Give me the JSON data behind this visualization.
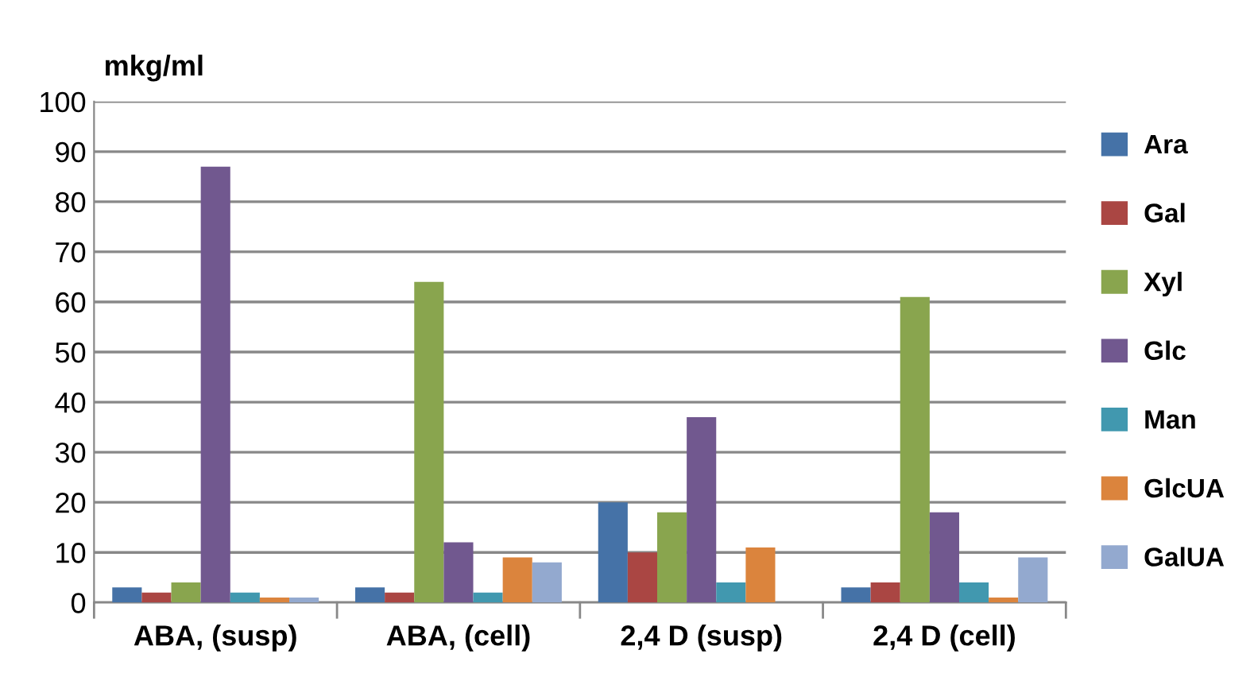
{
  "chart_data": {
    "type": "bar",
    "ylabel": "mkg/ml",
    "categories": [
      "ABA, (susp)",
      "ABA, (cell)",
      "2,4 D (susp)",
      "2,4 D (cell)"
    ],
    "series": [
      {
        "name": "Ara",
        "color": "#4572a7",
        "values": [
          3,
          3,
          20,
          3
        ]
      },
      {
        "name": "Gal",
        "color": "#aa4643",
        "values": [
          2,
          2,
          10,
          4
        ]
      },
      {
        "name": "Xyl",
        "color": "#89a54e",
        "values": [
          4,
          64,
          18,
          61
        ]
      },
      {
        "name": "Glc",
        "color": "#71588f",
        "values": [
          87,
          12,
          37,
          18
        ]
      },
      {
        "name": "Man",
        "color": "#4198af",
        "values": [
          2,
          2,
          4,
          4
        ]
      },
      {
        "name": "GlcUA",
        "color": "#db843d",
        "values": [
          1,
          9,
          11,
          1
        ]
      },
      {
        "name": "GalUA",
        "color": "#93a9cf",
        "values": [
          1,
          8,
          null,
          9
        ]
      }
    ],
    "ylim": [
      0,
      100
    ],
    "yticks": [
      0,
      10,
      20,
      30,
      40,
      50,
      60,
      70,
      80,
      90,
      100
    ],
    "grid": "y",
    "legend": "right"
  }
}
